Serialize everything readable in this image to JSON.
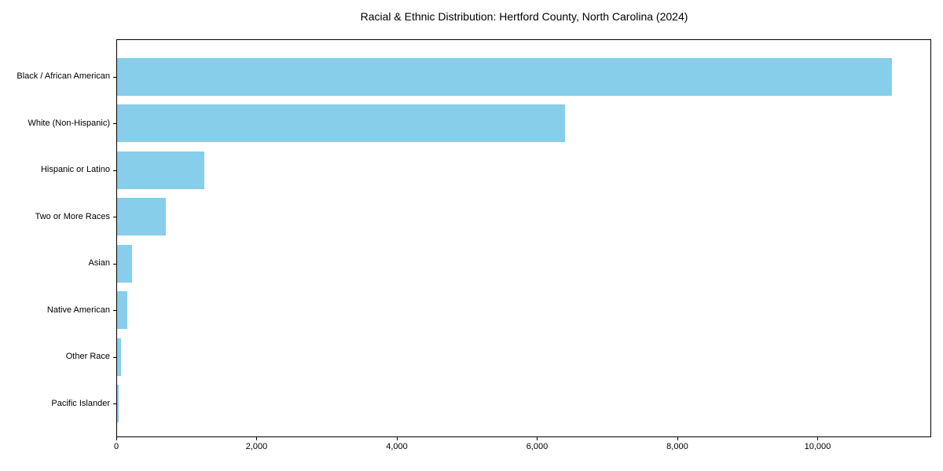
{
  "chart_data": {
    "type": "bar",
    "orientation": "horizontal",
    "title": "Racial & Ethnic Distribution: Hertford County, North Carolina (2024)",
    "xlabel": "",
    "ylabel": "",
    "categories": [
      "Black / African American",
      "White (Non-Hispanic)",
      "Hispanic or Latino",
      "Two or More Races",
      "Asian",
      "Native American",
      "Other Race",
      "Pacific Islander"
    ],
    "values": [
      11060,
      6400,
      1260,
      710,
      225,
      160,
      65,
      30
    ],
    "xlim": [
      0,
      11620
    ],
    "xticks": [
      0,
      2000,
      4000,
      6000,
      8000,
      10000
    ],
    "xtick_labels": [
      "0",
      "2,000",
      "4,000",
      "6,000",
      "8,000",
      "10,000"
    ],
    "bar_color": "#87CEEB",
    "background_color": "#ffffff",
    "text_color": "#000000",
    "grid": false,
    "legend": false
  }
}
